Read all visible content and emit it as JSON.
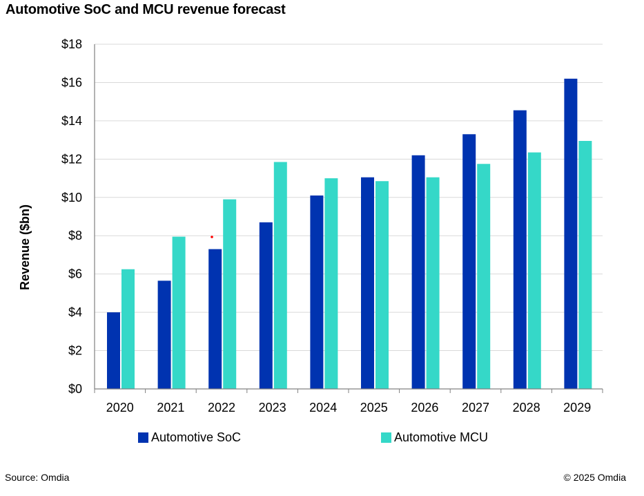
{
  "title": "Automotive SoC and MCU revenue forecast",
  "footer": {
    "source": "Source: Omdia",
    "copyright": "© 2025 Omdia"
  },
  "chart_data": {
    "type": "bar",
    "title": "Automotive SoC and MCU revenue forecast",
    "xlabel": "",
    "ylabel": "Revenue ($bn)",
    "ylim": [
      0,
      18
    ],
    "ytick_step": 2,
    "ytick_prefix": "$",
    "grid": true,
    "legend": "bottom",
    "categories": [
      "2020",
      "2021",
      "2022",
      "2023",
      "2024",
      "2025",
      "2026",
      "2027",
      "2028",
      "2029"
    ],
    "series": [
      {
        "name": "Automotive SoC",
        "color": "#0033b0",
        "values": [
          4.0,
          5.65,
          7.3,
          8.7,
          10.1,
          11.05,
          12.2,
          13.3,
          14.55,
          16.2
        ]
      },
      {
        "name": "Automotive MCU",
        "color": "#35d8c8",
        "values": [
          6.25,
          7.95,
          9.9,
          11.85,
          11.0,
          10.85,
          11.05,
          11.75,
          12.35,
          12.95
        ]
      }
    ]
  },
  "colors": {
    "grid": "#d9d9d9",
    "axis": "#808080",
    "marker": "#ff0000"
  }
}
